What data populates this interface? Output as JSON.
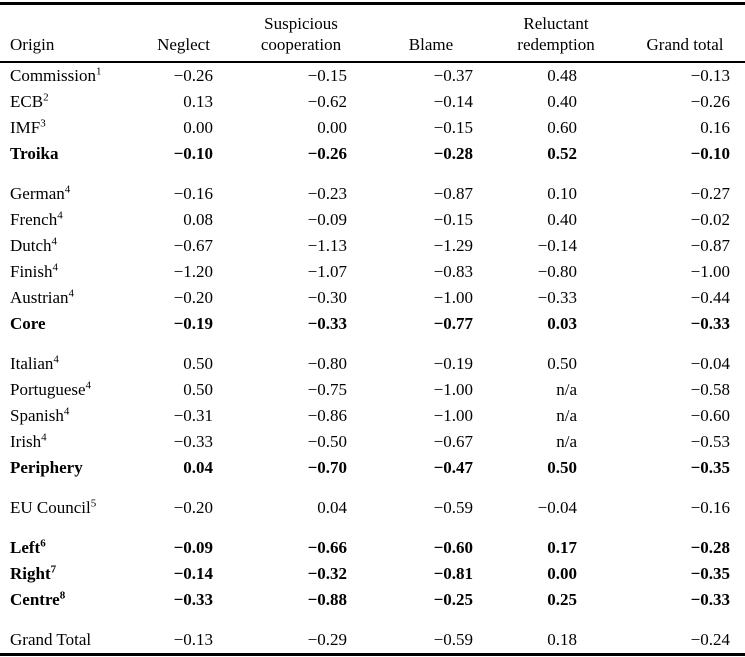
{
  "table": {
    "columns": [
      "Origin",
      "Neglect",
      "Suspicious cooperation",
      "Blame",
      "Reluctant redemption",
      "Grand total"
    ],
    "na_text": "n/a",
    "sections": [
      {
        "rows": [
          {
            "label": "Commission",
            "sup": "1",
            "bold": false,
            "values": [
              "−0.26",
              "−0.15",
              "−0.37",
              "0.48",
              "−0.13"
            ]
          },
          {
            "label": "ECB",
            "sup": "2",
            "bold": false,
            "values": [
              "0.13",
              "−0.62",
              "−0.14",
              "0.40",
              "−0.26"
            ]
          },
          {
            "label": "IMF",
            "sup": "3",
            "bold": false,
            "values": [
              "0.00",
              "0.00",
              "−0.15",
              "0.60",
              "0.16"
            ]
          },
          {
            "label": "Troika",
            "sup": "",
            "bold": true,
            "values": [
              "−0.10",
              "−0.26",
              "−0.28",
              "0.52",
              "−0.10"
            ]
          }
        ]
      },
      {
        "rows": [
          {
            "label": "German",
            "sup": "4",
            "bold": false,
            "values": [
              "−0.16",
              "−0.23",
              "−0.87",
              "0.10",
              "−0.27"
            ]
          },
          {
            "label": "French",
            "sup": "4",
            "bold": false,
            "values": [
              "0.08",
              "−0.09",
              "−0.15",
              "0.40",
              "−0.02"
            ]
          },
          {
            "label": "Dutch",
            "sup": "4",
            "bold": false,
            "values": [
              "−0.67",
              "−1.13",
              "−1.29",
              "−0.14",
              "−0.87"
            ]
          },
          {
            "label": "Finish",
            "sup": "4",
            "bold": false,
            "values": [
              "−1.20",
              "−1.07",
              "−0.83",
              "−0.80",
              "−1.00"
            ]
          },
          {
            "label": "Austrian",
            "sup": "4",
            "bold": false,
            "values": [
              "−0.20",
              "−0.30",
              "−1.00",
              "−0.33",
              "−0.44"
            ]
          },
          {
            "label": "Core",
            "sup": "",
            "bold": true,
            "values": [
              "−0.19",
              "−0.33",
              "−0.77",
              "0.03",
              "−0.33"
            ]
          }
        ]
      },
      {
        "rows": [
          {
            "label": "Italian",
            "sup": "4",
            "bold": false,
            "values": [
              "0.50",
              "−0.80",
              "−0.19",
              "0.50",
              "−0.04"
            ]
          },
          {
            "label": "Portuguese",
            "sup": "4",
            "bold": false,
            "values": [
              "0.50",
              "−0.75",
              "−1.00",
              "n/a",
              "−0.58"
            ]
          },
          {
            "label": "Spanish",
            "sup": "4",
            "bold": false,
            "values": [
              "−0.31",
              "−0.86",
              "−1.00",
              "n/a",
              "−0.60"
            ]
          },
          {
            "label": "Irish",
            "sup": "4",
            "bold": false,
            "values": [
              "−0.33",
              "−0.50",
              "−0.67",
              "n/a",
              "−0.53"
            ]
          },
          {
            "label": "Periphery",
            "sup": "",
            "bold": true,
            "values": [
              "0.04",
              "−0.70",
              "−0.47",
              "0.50",
              "−0.35"
            ]
          }
        ]
      },
      {
        "rows": [
          {
            "label": "EU Council",
            "sup": "5",
            "bold": false,
            "values": [
              "−0.20",
              "0.04",
              "−0.59",
              "−0.04",
              "−0.16"
            ]
          }
        ]
      },
      {
        "rows": [
          {
            "label": "Left",
            "sup": "6",
            "bold": true,
            "values": [
              "−0.09",
              "−0.66",
              "−0.60",
              "0.17",
              "−0.28"
            ]
          },
          {
            "label": "Right",
            "sup": "7",
            "bold": true,
            "values": [
              "−0.14",
              "−0.32",
              "−0.81",
              "0.00",
              "−0.35"
            ]
          },
          {
            "label": "Centre",
            "sup": "8",
            "bold": true,
            "values": [
              "−0.33",
              "−0.88",
              "−0.25",
              "0.25",
              "−0.33"
            ]
          }
        ]
      },
      {
        "rows": [
          {
            "label": "Grand Total",
            "sup": "",
            "bold": false,
            "values": [
              "−0.13",
              "−0.29",
              "−0.59",
              "0.18",
              "−0.24"
            ]
          }
        ]
      }
    ]
  }
}
